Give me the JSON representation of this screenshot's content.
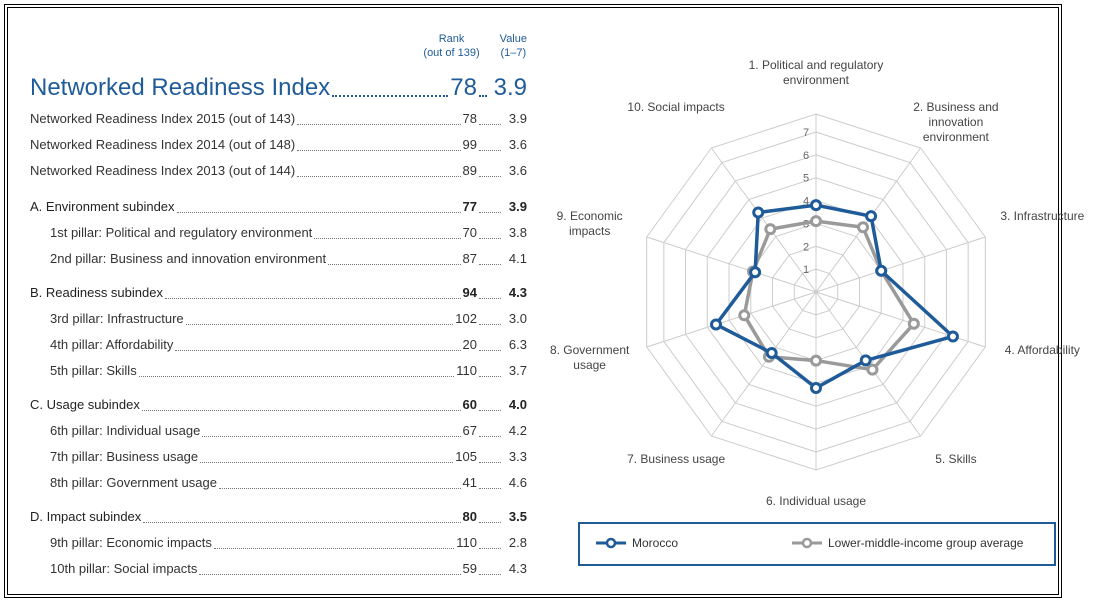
{
  "table": {
    "header_rank": "Rank",
    "header_rank_sub": "(out of 139)",
    "header_value": "Value",
    "header_value_sub": "(1–7)",
    "main": {
      "label": "Networked Readiness Index",
      "rank": 78,
      "value": "3.9"
    },
    "history": [
      {
        "label": "Networked Readiness Index 2015 (out of 143)",
        "rank": 78,
        "value": "3.9"
      },
      {
        "label": "Networked Readiness Index 2014 (out of 148)",
        "rank": 99,
        "value": "3.6"
      },
      {
        "label": "Networked Readiness Index 2013 (out of 144)",
        "rank": 89,
        "value": "3.6"
      }
    ],
    "subindexes": [
      {
        "label": "A. Environment subindex",
        "rank": 77,
        "value": "3.9",
        "pillars": [
          {
            "label": "1st pillar: Political and regulatory environment",
            "rank": 70,
            "value": "3.8"
          },
          {
            "label": "2nd pillar: Business and innovation environment",
            "rank": 87,
            "value": "4.1"
          }
        ]
      },
      {
        "label": "B. Readiness subindex",
        "rank": 94,
        "value": "4.3",
        "pillars": [
          {
            "label": "3rd pillar: Infrastructure",
            "rank": 102,
            "value": "3.0"
          },
          {
            "label": "4th pillar: Affordability",
            "rank": 20,
            "value": "6.3"
          },
          {
            "label": "5th pillar: Skills",
            "rank": 110,
            "value": "3.7"
          }
        ]
      },
      {
        "label": "C. Usage subindex",
        "rank": 60,
        "value": "4.0",
        "pillars": [
          {
            "label": "6th pillar: Individual usage",
            "rank": 67,
            "value": "4.2"
          },
          {
            "label": "7th pillar: Business usage",
            "rank": 105,
            "value": "3.3"
          },
          {
            "label": "8th pillar: Government usage",
            "rank": 41,
            "value": "4.6"
          }
        ]
      },
      {
        "label": "D. Impact subindex",
        "rank": 80,
        "value": "3.5",
        "pillars": [
          {
            "label": "9th pillar: Economic impacts",
            "rank": 110,
            "value": "2.8"
          },
          {
            "label": "10th pillar: Social impacts",
            "rank": 59,
            "value": "4.3"
          }
        ]
      }
    ]
  },
  "chart_data": {
    "type": "radar",
    "categories": [
      "1. Political and regulatory environment",
      "2. Business and innovation environment",
      "3. Infrastructure",
      "4. Affordability",
      "5. Skills",
      "6. Individual usage",
      "7. Business usage",
      "8. Government usage",
      "9. Economic impacts",
      "10. Social impacts"
    ],
    "series": [
      {
        "name": "Morocco",
        "color": "#1f5b99",
        "values": [
          3.8,
          4.1,
          3.0,
          6.3,
          3.7,
          4.2,
          3.3,
          4.6,
          2.8,
          4.3
        ]
      },
      {
        "name": "Lower-middle-income group average",
        "color": "#9a9a9a",
        "values": [
          3.1,
          3.5,
          3.0,
          4.5,
          4.2,
          3.0,
          3.5,
          3.3,
          2.9,
          3.4
        ]
      }
    ],
    "ylim": [
      0,
      7
    ],
    "yticks": [
      1,
      2,
      3,
      4,
      5,
      6,
      7
    ],
    "grid": true,
    "legend": "bottom"
  }
}
